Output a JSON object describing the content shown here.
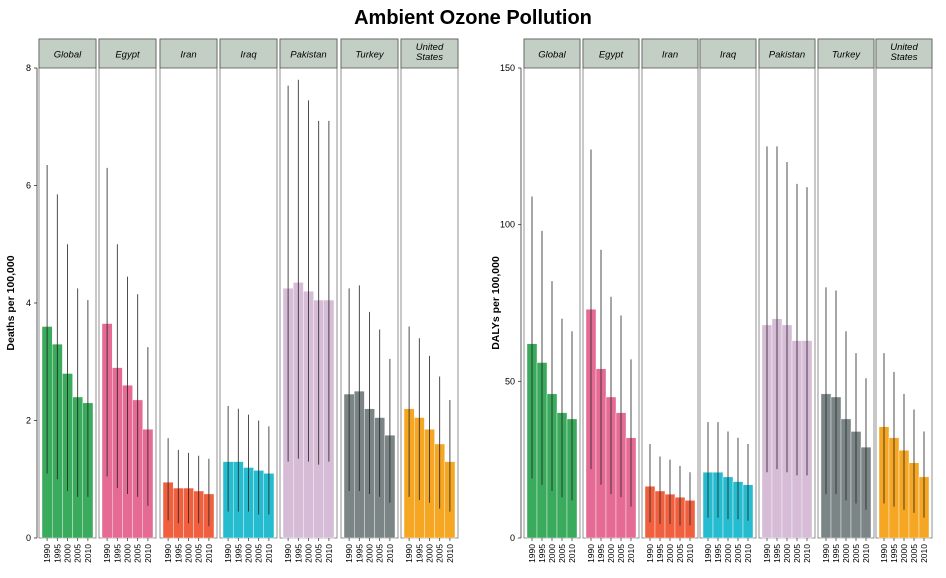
{
  "title": "Ambient Ozone Pollution",
  "chart_data": [
    {
      "type": "bar",
      "ylabel": "Deaths per 100,000",
      "ylim": [
        0,
        8
      ],
      "yticks": [
        0,
        2,
        4,
        6,
        8
      ],
      "x": [
        "1990",
        "1995",
        "2000",
        "2005",
        "2010"
      ],
      "panels": [
        {
          "name": "Global",
          "color": "#3aaa5c",
          "values": [
            3.6,
            3.3,
            2.8,
            2.4,
            2.3
          ],
          "lower": [
            1.1,
            1.0,
            0.8,
            0.7,
            0.7
          ],
          "upper": [
            6.35,
            5.85,
            5.0,
            4.25,
            4.05
          ]
        },
        {
          "name": "Egypt",
          "color": "#e56b94",
          "values": [
            3.65,
            2.9,
            2.6,
            2.35,
            1.85
          ],
          "lower": [
            1.05,
            0.85,
            0.75,
            0.7,
            0.55
          ],
          "upper": [
            6.3,
            5.0,
            4.45,
            4.15,
            3.25
          ]
        },
        {
          "name": "Iran",
          "color": "#f0603f",
          "values": [
            0.95,
            0.85,
            0.85,
            0.8,
            0.75
          ],
          "lower": [
            0.3,
            0.25,
            0.25,
            0.25,
            0.2
          ],
          "upper": [
            1.7,
            1.5,
            1.45,
            1.4,
            1.35
          ]
        },
        {
          "name": "Iraq",
          "color": "#26bcd0",
          "values": [
            1.3,
            1.3,
            1.2,
            1.15,
            1.1
          ],
          "lower": [
            0.45,
            0.45,
            0.45,
            0.4,
            0.4
          ],
          "upper": [
            2.25,
            2.2,
            2.1,
            2.0,
            1.9
          ]
        },
        {
          "name": "Pakistan",
          "color": "#d6bcd6",
          "values": [
            4.25,
            4.35,
            4.2,
            4.05,
            4.05
          ],
          "lower": [
            1.3,
            1.35,
            1.3,
            1.25,
            1.3
          ],
          "upper": [
            7.7,
            7.8,
            7.45,
            7.1,
            7.1
          ]
        },
        {
          "name": "Turkey",
          "color": "#7b8586",
          "values": [
            2.45,
            2.5,
            2.2,
            2.05,
            1.75
          ],
          "lower": [
            0.8,
            0.8,
            0.75,
            0.7,
            0.6
          ],
          "upper": [
            4.25,
            4.3,
            3.85,
            3.55,
            3.05
          ]
        },
        {
          "name": "United States",
          "color": "#f5a623",
          "values": [
            2.2,
            2.05,
            1.85,
            1.6,
            1.3
          ],
          "lower": [
            0.7,
            0.65,
            0.6,
            0.5,
            0.45
          ],
          "upper": [
            3.6,
            3.4,
            3.1,
            2.75,
            2.35
          ]
        }
      ]
    },
    {
      "type": "bar",
      "ylabel": "DALYs per 100,000",
      "ylim": [
        0,
        150
      ],
      "yticks": [
        0,
        50,
        100,
        150
      ],
      "x": [
        "1990",
        "1995",
        "2000",
        "2005",
        "2010"
      ],
      "panels": [
        {
          "name": "Global",
          "color": "#3aaa5c",
          "values": [
            62,
            56,
            46,
            40,
            38
          ],
          "lower": [
            19,
            17,
            15,
            13,
            12
          ],
          "upper": [
            109,
            98,
            82,
            70,
            66
          ]
        },
        {
          "name": "Egypt",
          "color": "#e56b94",
          "values": [
            73,
            54,
            45,
            40,
            32
          ],
          "lower": [
            22,
            17,
            14,
            13,
            10
          ],
          "upper": [
            124,
            92,
            77,
            71,
            57
          ]
        },
        {
          "name": "Iran",
          "color": "#f0603f",
          "values": [
            16.5,
            15,
            14,
            13,
            12
          ],
          "lower": [
            5,
            4.5,
            4.5,
            4,
            4
          ],
          "upper": [
            30,
            26,
            25,
            23,
            21
          ]
        },
        {
          "name": "Iraq",
          "color": "#26bcd0",
          "values": [
            21,
            21,
            19.5,
            18,
            17
          ],
          "lower": [
            6.5,
            6.5,
            6,
            6,
            5.5
          ],
          "upper": [
            37,
            37,
            34,
            32,
            30
          ]
        },
        {
          "name": "Pakistan",
          "color": "#d6bcd6",
          "values": [
            68,
            70,
            68,
            63,
            63
          ],
          "lower": [
            21,
            22,
            21,
            20,
            20
          ],
          "upper": [
            125,
            125,
            120,
            113,
            112
          ]
        },
        {
          "name": "Turkey",
          "color": "#7b8586",
          "values": [
            46,
            45,
            38,
            34,
            29
          ],
          "lower": [
            14,
            14,
            12,
            11,
            9
          ],
          "upper": [
            80,
            79,
            66,
            59,
            51
          ]
        },
        {
          "name": "United States",
          "color": "#f5a623",
          "values": [
            35.5,
            32,
            28,
            24,
            19.5
          ],
          "lower": [
            11,
            10,
            9,
            8,
            6.5
          ],
          "upper": [
            59,
            53,
            46,
            41,
            34
          ]
        }
      ]
    }
  ]
}
